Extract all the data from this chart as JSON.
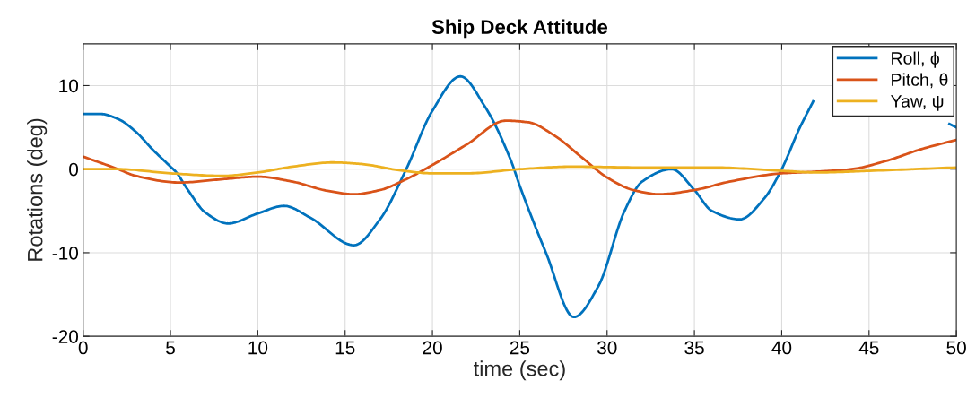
{
  "chart_data": {
    "type": "line",
    "title": "Ship Deck Attitude",
    "xlabel": "time (sec)",
    "ylabel": "Rotations (deg)",
    "xlim": [
      0,
      50
    ],
    "xticks": [
      0,
      5,
      10,
      15,
      20,
      25,
      30,
      35,
      40,
      45,
      50
    ],
    "ylim": [
      -20,
      15
    ],
    "yticks": [
      -20,
      -10,
      0,
      10
    ],
    "grid": true,
    "legend": "top right",
    "marker": "none",
    "line_style": "solid",
    "series": [
      {
        "name": "Roll, ϕ",
        "color": "#0072bd",
        "x": [
          0,
          1,
          2,
          3,
          4,
          5,
          5.3,
          6,
          7,
          8.3,
          10,
          11.5,
          13,
          15.5,
          17,
          18.5,
          20,
          21.6,
          23,
          24.5,
          25,
          26.5,
          28.1,
          29.5,
          31,
          32,
          33.7,
          35,
          36,
          37.6,
          39,
          40,
          41,
          41.8,
          44,
          46,
          48,
          49.6,
          50
        ],
        "values": [
          6.6,
          6.6,
          6.0,
          4.5,
          2.3,
          0.3,
          -0.3,
          -2.5,
          -5.2,
          -6.5,
          -5.3,
          -4.4,
          -5.8,
          -9.1,
          -6,
          0,
          7,
          11.1,
          7.5,
          1,
          -2,
          -10,
          -17.7,
          -14,
          -5,
          -1.5,
          0,
          -2.5,
          -5,
          -6,
          -3.5,
          0,
          4.8,
          8.1,
          null,
          null,
          null,
          5.4,
          5.0
        ]
      },
      {
        "name": "Pitch, θ",
        "color": "#d95319",
        "x": [
          0,
          2,
          3,
          5.5,
          8,
          10,
          12,
          14,
          15.5,
          17,
          18.5,
          20,
          22,
          24.2,
          25.5,
          27,
          28.5,
          30,
          31.5,
          33,
          35,
          37,
          40,
          42,
          44,
          46,
          48,
          50
        ],
        "values": [
          1.5,
          0,
          -0.8,
          -1.6,
          -1.2,
          -0.9,
          -1.5,
          -2.6,
          -3.0,
          -2.5,
          -1.2,
          0.5,
          3.0,
          5.8,
          5.6,
          4,
          1.5,
          -1,
          -2.5,
          -3,
          -2.5,
          -1.5,
          -0.5,
          -0.3,
          0,
          1,
          2.4,
          3.5
        ]
      },
      {
        "name": "Yaw, ψ",
        "color": "#edb120",
        "x": [
          0,
          2,
          5,
          8,
          10,
          12,
          14.3,
          16,
          18,
          20,
          22,
          25,
          28,
          32,
          36,
          40,
          42,
          45,
          50
        ],
        "values": [
          0,
          0,
          -0.5,
          -0.8,
          -0.4,
          0.3,
          0.8,
          0.6,
          -0.1,
          -0.5,
          -0.5,
          0,
          0.3,
          0.2,
          0.2,
          -0.2,
          -0.4,
          -0.2,
          0.2
        ]
      }
    ]
  }
}
